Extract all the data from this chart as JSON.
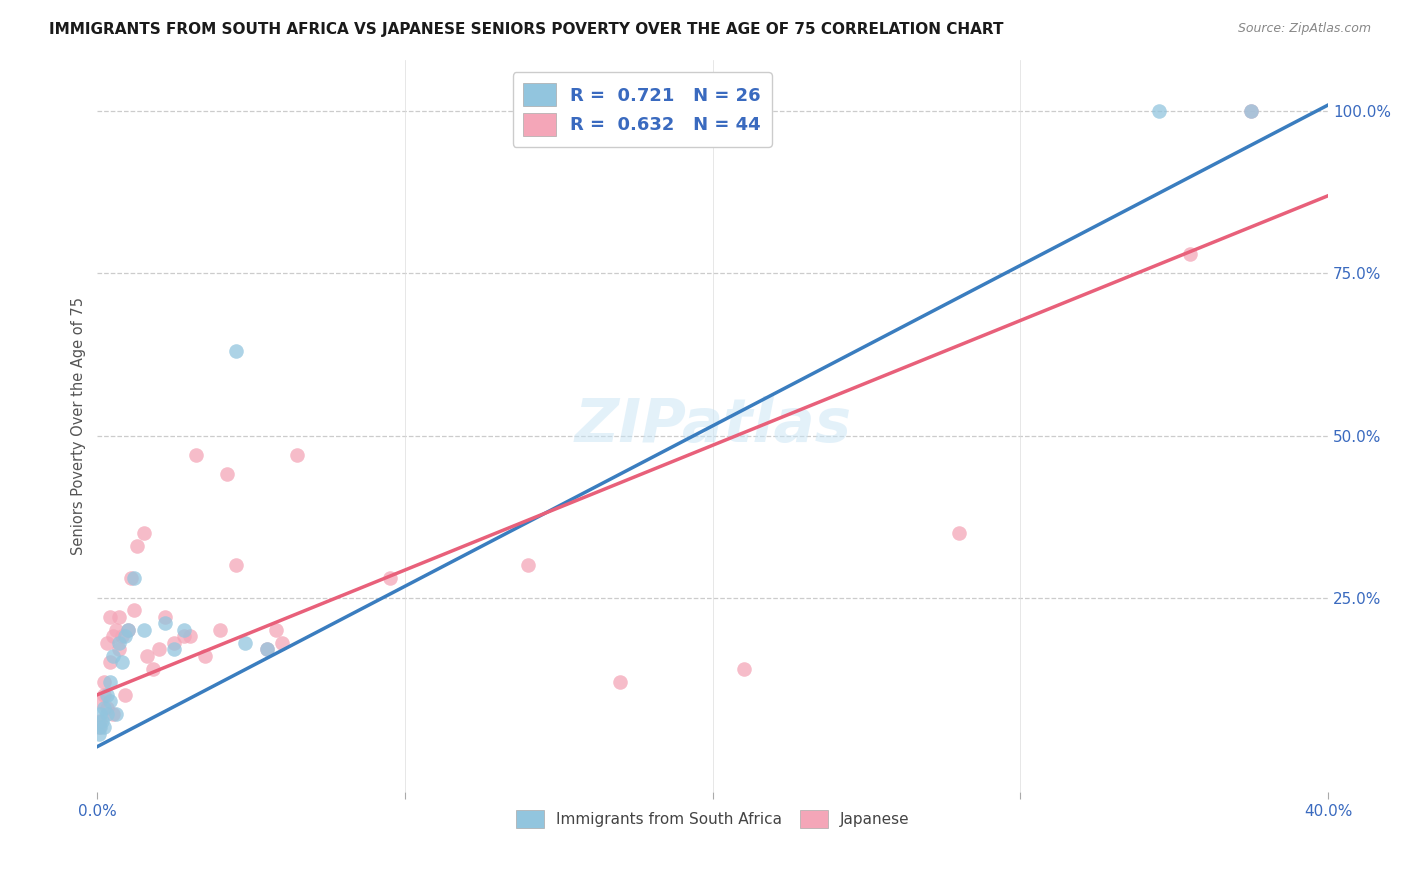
{
  "title": "IMMIGRANTS FROM SOUTH AFRICA VS JAPANESE SENIORS POVERTY OVER THE AGE OF 75 CORRELATION CHART",
  "source": "Source: ZipAtlas.com",
  "ylabel": "Seniors Poverty Over the Age of 75",
  "xlim": [
    0.0,
    0.4
  ],
  "ylim": [
    -0.05,
    1.08
  ],
  "legend_r1_label": "R =  0.721   N = 26",
  "legend_r2_label": "R =  0.632   N = 44",
  "legend_label1": "Immigrants from South Africa",
  "legend_label2": "Japanese",
  "color_blue": "#92c5de",
  "color_pink": "#f4a6b8",
  "color_line_blue": "#3a7dbf",
  "color_line_pink": "#e8607a",
  "watermark": "ZIPatlas",
  "blue_scatter_x": [
    0.0005,
    0.001,
    0.001,
    0.0015,
    0.002,
    0.002,
    0.003,
    0.003,
    0.004,
    0.004,
    0.005,
    0.006,
    0.007,
    0.008,
    0.009,
    0.01,
    0.012,
    0.015,
    0.022,
    0.025,
    0.028,
    0.045,
    0.048,
    0.055,
    0.345,
    0.375
  ],
  "blue_scatter_y": [
    0.04,
    0.05,
    0.07,
    0.06,
    0.08,
    0.05,
    0.07,
    0.1,
    0.12,
    0.09,
    0.16,
    0.07,
    0.18,
    0.15,
    0.19,
    0.2,
    0.28,
    0.2,
    0.21,
    0.17,
    0.2,
    0.63,
    0.18,
    0.17,
    1.0,
    1.0
  ],
  "pink_scatter_x": [
    0.0005,
    0.001,
    0.001,
    0.002,
    0.002,
    0.003,
    0.003,
    0.004,
    0.004,
    0.005,
    0.005,
    0.006,
    0.007,
    0.007,
    0.008,
    0.009,
    0.01,
    0.011,
    0.012,
    0.013,
    0.015,
    0.016,
    0.018,
    0.02,
    0.022,
    0.025,
    0.028,
    0.03,
    0.032,
    0.035,
    0.04,
    0.042,
    0.045,
    0.055,
    0.058,
    0.06,
    0.065,
    0.095,
    0.14,
    0.17,
    0.21,
    0.28,
    0.355,
    0.375
  ],
  "pink_scatter_y": [
    0.05,
    0.06,
    0.09,
    0.1,
    0.12,
    0.08,
    0.18,
    0.15,
    0.22,
    0.07,
    0.19,
    0.2,
    0.22,
    0.17,
    0.19,
    0.1,
    0.2,
    0.28,
    0.23,
    0.33,
    0.35,
    0.16,
    0.14,
    0.17,
    0.22,
    0.18,
    0.19,
    0.19,
    0.47,
    0.16,
    0.2,
    0.44,
    0.3,
    0.17,
    0.2,
    0.18,
    0.47,
    0.28,
    0.3,
    0.12,
    0.14,
    0.35,
    0.78,
    1.0
  ],
  "blue_line_x0": 0.0,
  "blue_line_y0": 0.02,
  "blue_line_x1": 0.4,
  "blue_line_y1": 1.01,
  "pink_line_x0": 0.0,
  "pink_line_y0": 0.1,
  "pink_line_x1": 0.4,
  "pink_line_y1": 0.87
}
